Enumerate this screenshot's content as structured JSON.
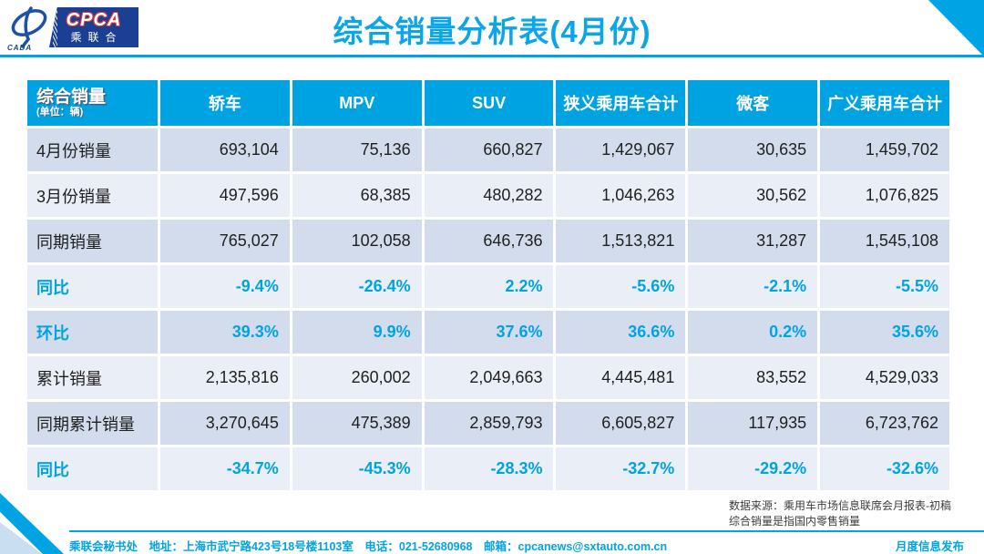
{
  "page": {
    "title": "综合销量分析表(4月份)"
  },
  "logo": {
    "emblem_caption": "CADA",
    "cpca": "CPCA",
    "subtitle": "乘联合"
  },
  "table": {
    "header": {
      "corner_title": "综合销量",
      "corner_unit": "(单位：辆)",
      "columns": [
        "轿车",
        "MPV",
        "SUV",
        "狭义乘用车合计",
        "微客",
        "广义乘用车合计"
      ]
    },
    "rows": [
      {
        "label": "4月份销量",
        "type": "number",
        "values": [
          "693,104",
          "75,136",
          "660,827",
          "1,429,067",
          "30,635",
          "1,459,702"
        ]
      },
      {
        "label": "3月份销量",
        "type": "number",
        "values": [
          "497,596",
          "68,385",
          "480,282",
          "1,046,263",
          "30,562",
          "1,076,825"
        ]
      },
      {
        "label": "同期销量",
        "type": "number",
        "values": [
          "765,027",
          "102,058",
          "646,736",
          "1,513,821",
          "31,287",
          "1,545,108"
        ]
      },
      {
        "label": "同比",
        "type": "percent",
        "values": [
          "-9.4%",
          "-26.4%",
          "2.2%",
          "-5.6%",
          "-2.1%",
          "-5.5%"
        ]
      },
      {
        "label": "环比",
        "type": "percent",
        "values": [
          "39.3%",
          "9.9%",
          "37.6%",
          "36.6%",
          "0.2%",
          "35.6%"
        ]
      },
      {
        "label": "累计销量",
        "type": "number",
        "values": [
          "2,135,816",
          "260,002",
          "2,049,663",
          "4,445,481",
          "83,552",
          "4,529,033"
        ]
      },
      {
        "label": "同期累计销量",
        "type": "number",
        "values": [
          "3,270,645",
          "475,389",
          "2,859,793",
          "6,605,827",
          "117,935",
          "6,723,762"
        ]
      },
      {
        "label": "同比",
        "type": "percent",
        "values": [
          "-34.7%",
          "-45.3%",
          "-28.3%",
          "-32.7%",
          "-29.2%",
          "-32.6%"
        ]
      }
    ]
  },
  "footnote": {
    "line1": "数据来源：乘用车市场信息联席会月报表-初稿",
    "line2": "综合销量是指国内零售销量"
  },
  "footer": {
    "left": "乘联会秘书处　地址：上海市武宁路423号18号楼1103室　电话：021-52680968　邮箱：cpcanews@sxtauto.com.cn",
    "right": "月度信息发布"
  },
  "colors": {
    "accent": "#00a3e4",
    "header_bg": "#00a3e1",
    "row_dark": "#d3dcec",
    "row_light": "#eaeef6",
    "logo_navy": "#1b3f94",
    "logo_red": "#d93a32",
    "pale_triangle": "#c9def1"
  }
}
